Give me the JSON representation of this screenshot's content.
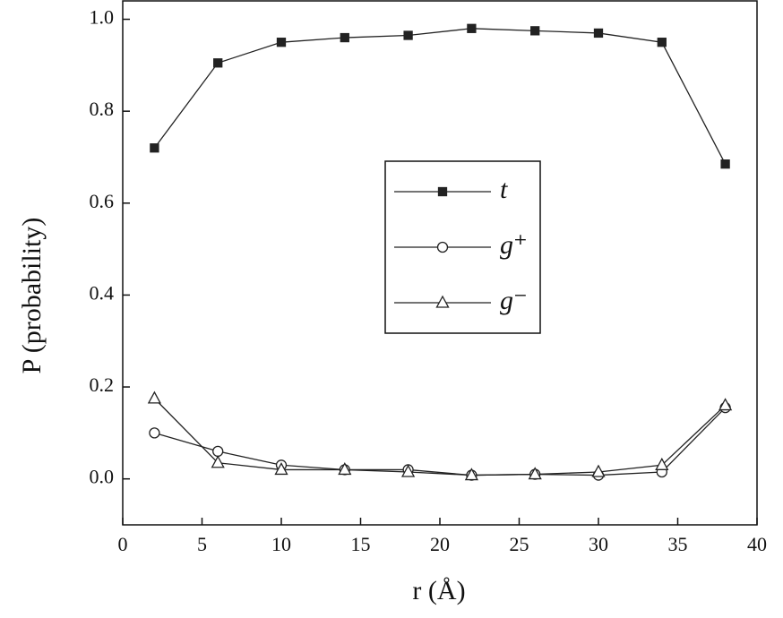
{
  "chart_data": {
    "type": "line",
    "x_label": "r (Å)",
    "y_label": "P (probability)",
    "x": [
      2,
      6,
      10,
      14,
      18,
      22,
      26,
      30,
      34,
      38
    ],
    "series": [
      {
        "name": "t",
        "color": "#222222",
        "marker": "square",
        "values": [
          0.72,
          0.905,
          0.95,
          0.96,
          0.965,
          0.98,
          0.975,
          0.97,
          0.95,
          0.685
        ]
      },
      {
        "name": "g⁺",
        "color": "#222222",
        "marker": "circle",
        "values": [
          0.1,
          0.06,
          0.03,
          0.02,
          0.02,
          0.008,
          0.01,
          0.008,
          0.015,
          0.155
        ]
      },
      {
        "name": "g⁻",
        "color": "#222222",
        "marker": "triangle",
        "values": [
          0.175,
          0.035,
          0.02,
          0.02,
          0.015,
          0.008,
          0.01,
          0.015,
          0.03,
          0.16
        ]
      }
    ],
    "xlim": [
      0,
      40
    ],
    "xticks": [
      0,
      5,
      10,
      15,
      20,
      25,
      30,
      35,
      40
    ],
    "ylim": [
      -0.1,
      1.04
    ],
    "yticks": [
      {
        "value": 0,
        "label": "0.0"
      },
      0.2,
      0.4,
      0.6,
      0.8,
      {
        "value": 1,
        "label": "1.0"
      }
    ]
  }
}
